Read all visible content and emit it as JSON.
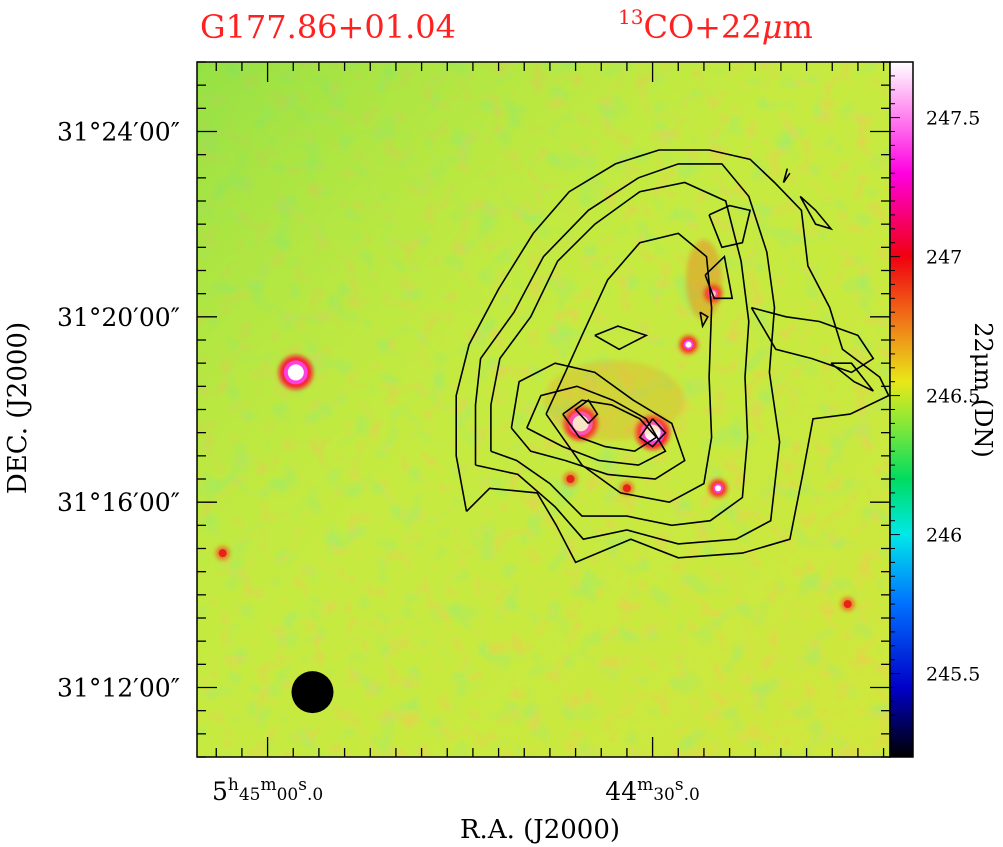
{
  "titles": {
    "left": "G177.86+01.04",
    "right_sup": "13",
    "right_main": "CO+22",
    "right_mu": "μ",
    "right_tail": "m"
  },
  "colors": {
    "title": "#ff2020",
    "contour": "#000000",
    "frame": "#000000",
    "background_map": "#c8ec40"
  },
  "chart_data": {
    "type": "heatmap",
    "title": "G177.86+01.04   13CO+22μm",
    "xlabel": "R.A. (J2000)",
    "ylabel": "DEC. (J2000)",
    "colorbar_label": "22μm (DN)",
    "x_ticks": [
      {
        "h": "5",
        "m": "45",
        "s": "00",
        "frac": "0",
        "ra_sec": 20700
      },
      {
        "h": "",
        "m": "44",
        "s": "30",
        "frac": "0",
        "ra_sec": 20670
      }
    ],
    "ra_range_sec": [
      20705.5,
      20651.5
    ],
    "y_ticks": [
      "31°24′00″",
      "31°20′00″",
      "31°16′00″",
      "31°12′00″"
    ],
    "dec_tick_values_arcmin": [
      24,
      20,
      16,
      12
    ],
    "dec_range_arcmin": [
      10.5,
      25.5
    ],
    "colorbar_ticks": [
      "245.5",
      "246",
      "246.5",
      "247",
      "247.5"
    ],
    "colorbar_tick_values": [
      245.5,
      246.0,
      246.5,
      247.0,
      247.5
    ],
    "colorbar_range": [
      245.2,
      247.7
    ],
    "colormap_stops": [
      {
        "v": 245.2,
        "c": "#000000"
      },
      {
        "v": 245.45,
        "c": "#0000c8"
      },
      {
        "v": 245.75,
        "c": "#0070ff"
      },
      {
        "v": 246.0,
        "c": "#00e8e8"
      },
      {
        "v": 246.2,
        "c": "#00dc60"
      },
      {
        "v": 246.4,
        "c": "#88e838"
      },
      {
        "v": 246.55,
        "c": "#e8e818"
      },
      {
        "v": 246.75,
        "c": "#f08018"
      },
      {
        "v": 247.0,
        "c": "#f00010"
      },
      {
        "v": 247.3,
        "c": "#ff00e0"
      },
      {
        "v": 247.7,
        "c": "#ffffff"
      }
    ],
    "bright_sources": [
      {
        "ra_sec": 20697.8,
        "dec_arcmin": 18.8,
        "level": "saturated"
      },
      {
        "ra_sec": 20675.6,
        "dec_arcmin": 17.7,
        "level": "saturated"
      },
      {
        "ra_sec": 20670.0,
        "dec_arcmin": 17.5,
        "level": "saturated"
      },
      {
        "ra_sec": 20667.2,
        "dec_arcmin": 19.4,
        "level": "high"
      },
      {
        "ra_sec": 20665.3,
        "dec_arcmin": 20.5,
        "level": "high"
      },
      {
        "ra_sec": 20664.9,
        "dec_arcmin": 16.3,
        "level": "high"
      },
      {
        "ra_sec": 20676.4,
        "dec_arcmin": 16.5,
        "level": "medium"
      },
      {
        "ra_sec": 20672.0,
        "dec_arcmin": 16.3,
        "level": "medium"
      },
      {
        "ra_sec": 20703.5,
        "dec_arcmin": 14.9,
        "level": "medium"
      },
      {
        "ra_sec": 20654.8,
        "dec_arcmin": 13.8,
        "level": "medium"
      }
    ],
    "contours": [
      {
        "level": 1,
        "points": [
          [
            20684.5,
            15.8
          ],
          [
            20685.3,
            17.0
          ],
          [
            20685.3,
            18.3
          ],
          [
            20684.3,
            19.4
          ],
          [
            20682.0,
            20.6
          ],
          [
            20679.3,
            21.8
          ],
          [
            20676.5,
            22.7
          ],
          [
            20672.9,
            23.3
          ],
          [
            20669.5,
            23.6
          ],
          [
            20665.6,
            23.6
          ],
          [
            20662.4,
            23.4
          ],
          [
            20660.5,
            22.9
          ],
          [
            20658.4,
            22.3
          ],
          [
            20657.9,
            21.1
          ],
          [
            20656.2,
            20.2
          ],
          [
            20655.2,
            19.3
          ],
          [
            20652.3,
            18.7
          ],
          [
            20651.6,
            18.3
          ],
          [
            20654.6,
            17.9
          ],
          [
            20657.5,
            17.8
          ],
          [
            20658.3,
            16.6
          ],
          [
            20659.3,
            15.2
          ],
          [
            20663.0,
            14.9
          ],
          [
            20668.0,
            14.8
          ],
          [
            20671.7,
            15.2
          ],
          [
            20676.0,
            14.7
          ],
          [
            20677.5,
            15.5
          ],
          [
            20679.0,
            16.2
          ],
          [
            20682.7,
            16.3
          ],
          [
            20684.5,
            15.8
          ]
        ]
      },
      {
        "level": 2,
        "points": [
          [
            20683.8,
            16.8
          ],
          [
            20683.8,
            18.1
          ],
          [
            20683.4,
            19.1
          ],
          [
            20680.8,
            20.1
          ],
          [
            20678.5,
            21.3
          ],
          [
            20675.0,
            22.3
          ],
          [
            20671.1,
            23.0
          ],
          [
            20668.0,
            23.3
          ],
          [
            20664.6,
            23.3
          ],
          [
            20662.5,
            22.6
          ],
          [
            20661.1,
            21.4
          ],
          [
            20660.5,
            20.2
          ],
          [
            20660.9,
            18.8
          ],
          [
            20660.1,
            17.3
          ],
          [
            20660.8,
            15.6
          ],
          [
            20663.5,
            15.2
          ],
          [
            20668.0,
            15.1
          ],
          [
            20672.0,
            15.4
          ],
          [
            20675.4,
            15.2
          ],
          [
            20677.6,
            15.9
          ],
          [
            20680.5,
            16.6
          ],
          [
            20683.8,
            16.8
          ]
        ]
      },
      {
        "level": 3,
        "points": [
          [
            20682.6,
            17.1
          ],
          [
            20682.6,
            18.1
          ],
          [
            20681.9,
            19.1
          ],
          [
            20679.5,
            20.0
          ],
          [
            20677.4,
            21.2
          ],
          [
            20674.5,
            22.0
          ],
          [
            20671.0,
            22.7
          ],
          [
            20667.5,
            22.9
          ],
          [
            20664.3,
            22.5
          ],
          [
            20663.1,
            21.2
          ],
          [
            20662.5,
            19.9
          ],
          [
            20662.8,
            18.7
          ],
          [
            20662.6,
            17.4
          ],
          [
            20663.0,
            16.1
          ],
          [
            20665.5,
            15.6
          ],
          [
            20668.5,
            15.5
          ],
          [
            20672.0,
            15.7
          ],
          [
            20675.5,
            15.7
          ],
          [
            20678.0,
            16.4
          ],
          [
            20680.6,
            16.9
          ],
          [
            20682.6,
            17.1
          ]
        ]
      },
      {
        "level": 4,
        "points": [
          [
            20678.3,
            17.9
          ],
          [
            20676.8,
            18.8
          ],
          [
            20675.5,
            19.6
          ],
          [
            20673.5,
            20.8
          ],
          [
            20671.0,
            21.6
          ],
          [
            20668.0,
            21.8
          ],
          [
            20665.8,
            21.3
          ],
          [
            20665.4,
            20.2
          ],
          [
            20665.6,
            18.7
          ],
          [
            20665.4,
            17.4
          ],
          [
            20666.0,
            16.4
          ],
          [
            20668.7,
            16.0
          ],
          [
            20672.5,
            16.2
          ],
          [
            20675.5,
            16.8
          ],
          [
            20678.3,
            17.9
          ]
        ]
      },
      {
        "level": 5,
        "points": [
          [
            20681.0,
            17.6
          ],
          [
            20680.4,
            18.6
          ],
          [
            20677.6,
            19.0
          ],
          [
            20674.5,
            18.8
          ],
          [
            20671.5,
            18.2
          ],
          [
            20668.5,
            17.7
          ],
          [
            20667.5,
            16.9
          ],
          [
            20669.8,
            16.5
          ],
          [
            20673.5,
            16.6
          ],
          [
            20676.8,
            16.9
          ],
          [
            20679.5,
            17.1
          ],
          [
            20681.0,
            17.6
          ]
        ]
      },
      {
        "level": 6,
        "points": [
          [
            20679.8,
            17.6
          ],
          [
            20678.7,
            18.3
          ],
          [
            20675.9,
            18.5
          ],
          [
            20673.1,
            18.2
          ],
          [
            20670.5,
            17.8
          ],
          [
            20669.0,
            17.1
          ],
          [
            20671.1,
            16.8
          ],
          [
            20674.2,
            16.9
          ],
          [
            20677.0,
            17.2
          ],
          [
            20679.8,
            17.6
          ]
        ]
      },
      {
        "level": 7,
        "points": [
          [
            20677.0,
            17.9
          ],
          [
            20675.5,
            18.2
          ],
          [
            20673.2,
            18.1
          ],
          [
            20671.0,
            17.8
          ],
          [
            20669.7,
            17.4
          ],
          [
            20671.4,
            17.1
          ],
          [
            20673.7,
            17.2
          ],
          [
            20675.7,
            17.4
          ],
          [
            20677.0,
            17.9
          ]
        ]
      },
      {
        "level": 8,
        "points": [
          [
            20675.0,
            17.7
          ],
          [
            20676.0,
            18.0
          ],
          [
            20675.0,
            18.2
          ],
          [
            20674.3,
            17.9
          ],
          [
            20675.0,
            17.7
          ]
        ]
      },
      {
        "level": 9,
        "points": [
          [
            20670.0,
            17.8
          ],
          [
            20669.0,
            17.5
          ],
          [
            20670.0,
            17.2
          ],
          [
            20671.0,
            17.4
          ],
          [
            20670.0,
            17.8
          ]
        ]
      },
      {
        "level": 10,
        "points": [
          [
            20674.5,
            19.6
          ],
          [
            20672.7,
            19.8
          ],
          [
            20670.5,
            19.6
          ],
          [
            20672.6,
            19.3
          ],
          [
            20674.5,
            19.6
          ]
        ]
      },
      {
        "level": 11,
        "points": [
          [
            20665.9,
            20.9
          ],
          [
            20664.4,
            21.3
          ],
          [
            20663.8,
            20.4
          ],
          [
            20665.2,
            20.4
          ],
          [
            20665.9,
            20.9
          ]
        ]
      },
      {
        "level": 12,
        "points": [
          [
            20666.3,
            20.1
          ],
          [
            20665.7,
            20.0
          ],
          [
            20666.1,
            19.8
          ],
          [
            20666.3,
            20.1
          ]
        ]
      },
      {
        "level": 13,
        "points": [
          [
            20665.6,
            22.2
          ],
          [
            20664.0,
            22.4
          ],
          [
            20662.4,
            22.3
          ],
          [
            20663.0,
            21.6
          ],
          [
            20664.6,
            21.5
          ],
          [
            20665.6,
            22.2
          ]
        ]
      },
      {
        "level": 14,
        "points": [
          [
            20662.3,
            20.2
          ],
          [
            20659.6,
            20.0
          ],
          [
            20657.0,
            19.9
          ],
          [
            20654.0,
            19.6
          ],
          [
            20652.8,
            19.1
          ],
          [
            20654.5,
            18.8
          ],
          [
            20657.6,
            19.1
          ],
          [
            20660.4,
            19.3
          ],
          [
            20662.3,
            20.2
          ]
        ]
      },
      {
        "level": 15,
        "points": [
          [
            20658.5,
            22.6
          ],
          [
            20657.3,
            22.3
          ],
          [
            20656.1,
            21.9
          ],
          [
            20657.3,
            22.0
          ],
          [
            20658.5,
            22.6
          ]
        ]
      },
      {
        "level": 16,
        "points": [
          [
            20656.1,
            19.0
          ],
          [
            20654.3,
            18.6
          ],
          [
            20652.8,
            18.4
          ],
          [
            20654.5,
            19.0
          ],
          [
            20656.1,
            19.0
          ]
        ]
      },
      {
        "level": 17,
        "points": [
          [
            20659.5,
            23.2
          ],
          [
            20659.8,
            22.9
          ],
          [
            20659.3,
            23.1
          ]
        ]
      }
    ],
    "beam": {
      "ra_sec": 20696.5,
      "dec_arcmin": 11.9,
      "diameter_arcsec": 50
    }
  }
}
